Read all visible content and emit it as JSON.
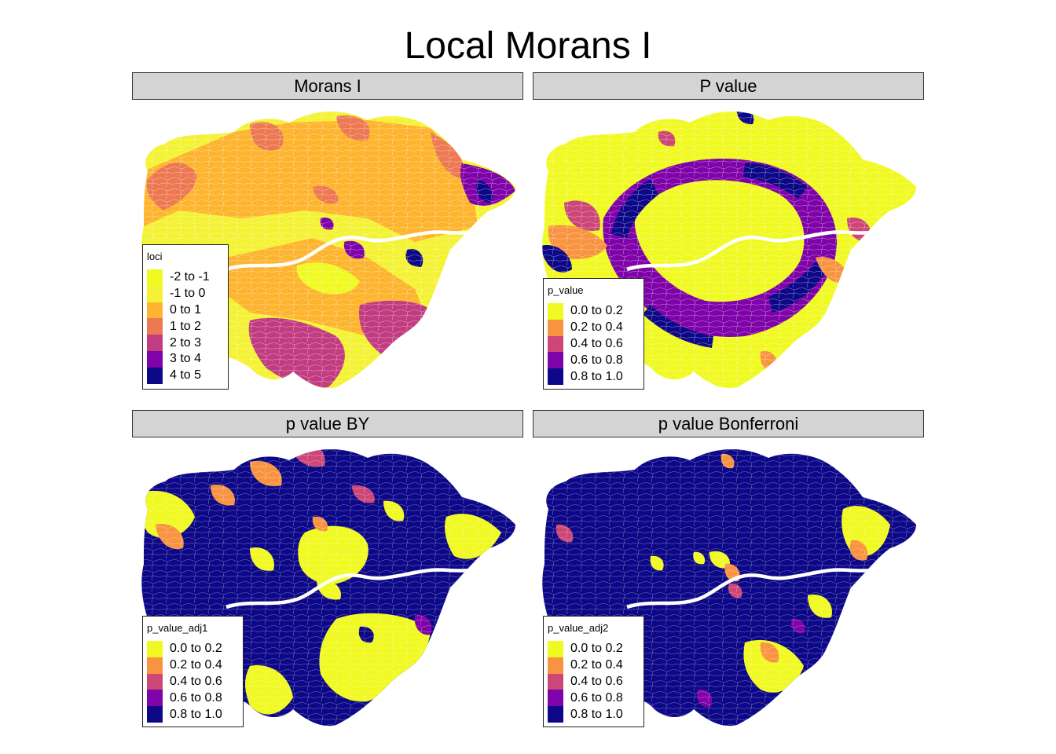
{
  "title": "Local Morans I",
  "colors": {
    "c1": "#F0F921",
    "c2": "#F89441",
    "c3": "#CC4778",
    "c4": "#7E03A8",
    "c5": "#0D0887",
    "river": "#ffffff",
    "strip": "#d4d4d4"
  },
  "panels": [
    {
      "strip": "Morans I",
      "legend": {
        "title": "loci",
        "items": [
          {
            "label": "-2 to -1",
            "color": "#F0F921"
          },
          {
            "label": "-1 to 0",
            "color": "#F4F235"
          },
          {
            "label": "0 to 1",
            "color": "#FDB42F"
          },
          {
            "label": "1 to 2",
            "color": "#ED7953"
          },
          {
            "label": "2 to 3",
            "color": "#C23C81"
          },
          {
            "label": "3 to 4",
            "color": "#7E03A8"
          },
          {
            "label": "4 to 5",
            "color": "#0D0887"
          }
        ]
      }
    },
    {
      "strip": "P value",
      "legend": {
        "title": "p_value",
        "items": [
          {
            "label": "0.0 to 0.2",
            "color": "#F0F921"
          },
          {
            "label": "0.2 to 0.4",
            "color": "#F89441"
          },
          {
            "label": "0.4 to 0.6",
            "color": "#CC4778"
          },
          {
            "label": "0.6 to 0.8",
            "color": "#7E03A8"
          },
          {
            "label": "0.8 to 1.0",
            "color": "#0D0887"
          }
        ]
      }
    },
    {
      "strip": "p value BY",
      "legend": {
        "title": "p_value_adj1",
        "items": [
          {
            "label": "0.0 to 0.2",
            "color": "#F0F921"
          },
          {
            "label": "0.2 to 0.4",
            "color": "#F89441"
          },
          {
            "label": "0.4 to 0.6",
            "color": "#CC4778"
          },
          {
            "label": "0.6 to 0.8",
            "color": "#7E03A8"
          },
          {
            "label": "0.8 to 1.0",
            "color": "#0D0887"
          }
        ]
      }
    },
    {
      "strip": "p value Bonferroni",
      "legend": {
        "title": "p_value_adj2",
        "items": [
          {
            "label": "0.0 to 0.2",
            "color": "#F0F921"
          },
          {
            "label": "0.2 to 0.4",
            "color": "#F89441"
          },
          {
            "label": "0.4 to 0.6",
            "color": "#CC4778"
          },
          {
            "label": "0.6 to 0.8",
            "color": "#7E03A8"
          },
          {
            "label": "0.8 to 1.0",
            "color": "#0D0887"
          }
        ]
      }
    }
  ]
}
